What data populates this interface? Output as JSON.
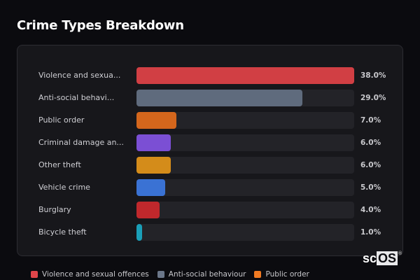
{
  "title": "Crime Types Breakdown",
  "chart_data": {
    "type": "bar",
    "orientation": "horizontal",
    "title": "Crime Types Breakdown",
    "categories": [
      "Violence and sexual offences",
      "Anti-social behaviour",
      "Public order",
      "Criminal damage and arson",
      "Other theft",
      "Vehicle crime",
      "Burglary",
      "Bicycle theft"
    ],
    "display_labels": [
      "Violence and sexua...",
      "Anti-social behavi...",
      "Public order",
      "Criminal damage an...",
      "Other theft",
      "Vehicle crime",
      "Burglary",
      "Bicycle theft"
    ],
    "values": [
      38.0,
      29.0,
      7.0,
      6.0,
      6.0,
      5.0,
      4.0,
      1.0
    ],
    "value_labels": [
      "38.0%",
      "29.0%",
      "7.0%",
      "6.0%",
      "6.0%",
      "5.0%",
      "4.0%",
      "1.0%"
    ],
    "colors": [
      "#d13f44",
      "#5f6b7d",
      "#d4661c",
      "#7b4fd4",
      "#d48c1a",
      "#3a72d4",
      "#c0282c",
      "#1a9fb8"
    ],
    "scale_max": 38.0,
    "xlabel": "",
    "ylabel": "",
    "grid": false,
    "legend_position": "bottom"
  },
  "legend": [
    {
      "label": "Violence and sexual offences",
      "color": "#e0454a"
    },
    {
      "label": "Anti-social behaviour",
      "color": "#6b778a"
    },
    {
      "label": "Public order",
      "color": "#f07a22"
    }
  ],
  "logo": {
    "left": "sc",
    "right": "OS",
    "mark": "®"
  }
}
